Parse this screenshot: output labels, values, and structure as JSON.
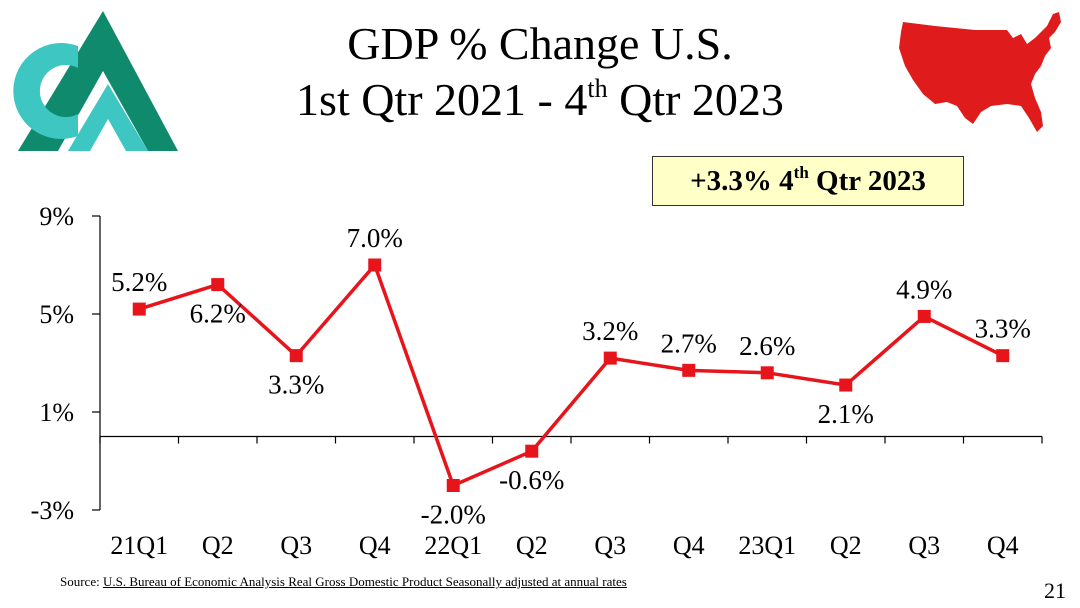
{
  "title": {
    "line1": "GDP % Change U.S.",
    "line2_before": "1st Qtr 2021 - 4",
    "line2_sup": "th",
    "line2_after": " Qtr 2023"
  },
  "badge": {
    "before": "+3.3% 4",
    "sup": "th",
    "after": " Qtr 2023"
  },
  "source": {
    "label": "Source: ",
    "text": "U.S. Bureau of Economic Analysis Real Gross Domestic Product Seasonally adjusted at annual rates"
  },
  "page_number": "21",
  "colors": {
    "line": "#e8141b",
    "map": "#e01b1b",
    "logo_dark": "#0f8a6c",
    "logo_light": "#3ec6c2",
    "badge_bg": "#ffffc8"
  },
  "chart_data": {
    "type": "line",
    "title": "GDP % Change U.S. 1st Qtr 2021 - 4th Qtr 2023",
    "categories": [
      "21Q1",
      "Q2",
      "Q3",
      "Q4",
      "22Q1",
      "Q2",
      "Q3",
      "Q4",
      "23Q1",
      "Q2",
      "Q3",
      "Q4"
    ],
    "series": [
      {
        "name": "GDP % Change",
        "values": [
          5.2,
          6.2,
          3.3,
          7.0,
          -2.0,
          -0.6,
          3.2,
          2.7,
          2.6,
          2.1,
          4.9,
          3.3
        ]
      }
    ],
    "data_labels": [
      "5.2%",
      "6.2%",
      "3.3%",
      "7.0%",
      "-2.0%",
      "-0.6%",
      "3.2%",
      "2.7%",
      "2.6%",
      "2.1%",
      "4.9%",
      "3.3%"
    ],
    "label_positions": [
      "above",
      "below",
      "below",
      "above",
      "below",
      "below",
      "above",
      "above",
      "above",
      "below",
      "above",
      "above"
    ],
    "y_ticks": [
      9,
      5,
      1,
      -3
    ],
    "y_tick_labels": [
      "9%",
      "5%",
      "1%",
      "-3%"
    ],
    "ylim": [
      -3,
      9
    ],
    "xlabel": "",
    "ylabel": "",
    "grid": false,
    "legend": "none"
  }
}
